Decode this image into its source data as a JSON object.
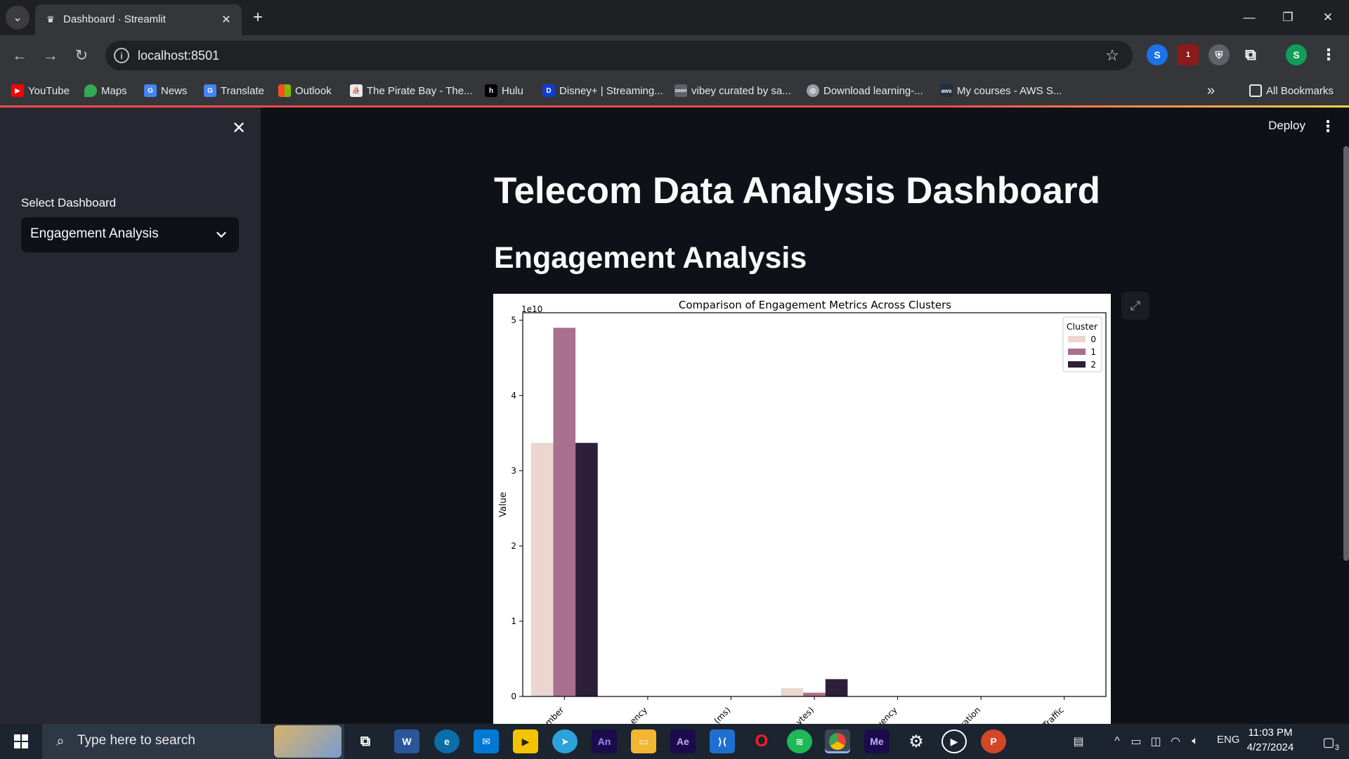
{
  "browser": {
    "tab_title": "Dashboard · Streamlit",
    "url": "localhost:8501",
    "bookmarks": [
      "YouTube",
      "Maps",
      "News",
      "Translate",
      "Outlook",
      "The Pirate Bay - The...",
      "Hulu",
      "Disney+ | Streaming...",
      "vibey curated by sa...",
      "Download learning-...",
      "My courses - AWS S..."
    ],
    "all_bookmarks": "All Bookmarks",
    "more_bookmarks": "»",
    "profile_initial": "S",
    "extension_badge": "1"
  },
  "sidebar": {
    "select_label": "Select Dashboard",
    "select_value": "Engagement Analysis"
  },
  "main": {
    "deploy_label": "Deploy",
    "title": "Telecom Data Analysis Dashboard",
    "section_title": "Engagement Analysis"
  },
  "chart_data": {
    "type": "bar",
    "title": "Comparison of Engagement Metrics Across Clusters",
    "ylabel": "Value",
    "xlabel": "",
    "offset_label": "1e10",
    "ylim": [
      0,
      5.1
    ],
    "yticks": [
      0,
      1,
      2,
      3,
      4,
      5
    ],
    "categories": [
      "mber",
      "ency",
      "(ms)",
      "ytes)",
      "uency",
      "ration",
      "Traffic"
    ],
    "series": [
      {
        "name": "0",
        "color": "#ead6cf",
        "values": [
          3.37,
          0,
          0,
          0.11,
          0,
          0,
          0
        ]
      },
      {
        "name": "1",
        "color": "#a8708e",
        "values": [
          4.9,
          0,
          0,
          0.05,
          0,
          0,
          0
        ]
      },
      {
        "name": "2",
        "color": "#2d1e3a",
        "values": [
          3.37,
          0,
          0,
          0.23,
          0,
          0,
          0
        ]
      }
    ],
    "legend": {
      "title": "Cluster",
      "placement": "top-right"
    }
  },
  "taskbar": {
    "search_placeholder": "Type here to search",
    "apps": [
      "Task View",
      "Word",
      "Edge",
      "Mail",
      "Player",
      "Telegram",
      "An",
      "File Explorer",
      "Ae",
      "VS Code",
      "Opera",
      "Spotify",
      "Chrome",
      "Me",
      "Settings",
      "Media",
      "PowerPoint"
    ],
    "language": "ENG",
    "time": "11:03 PM",
    "date": "4/27/2024",
    "notifications": "3"
  }
}
